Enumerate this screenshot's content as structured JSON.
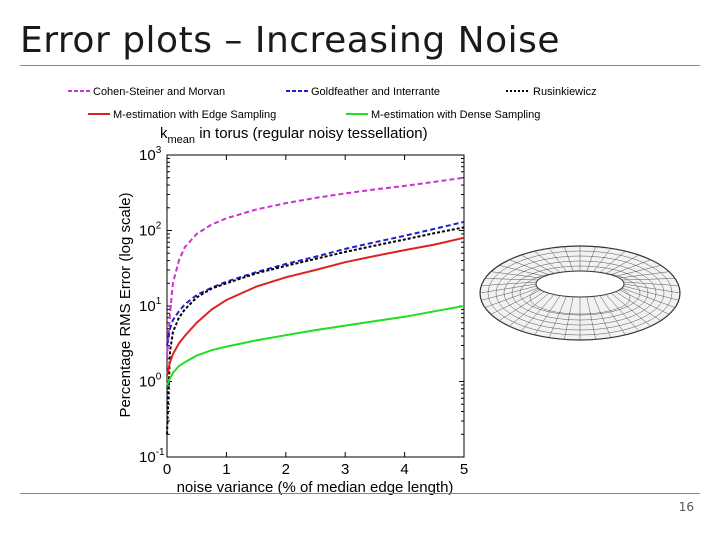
{
  "slide": {
    "title": "Error plots – Increasing Noise",
    "page_number": "16"
  },
  "chart_data": {
    "type": "line",
    "title_main": "k",
    "title_sub": "mean",
    "title_rest": " in torus (regular noisy tessellation)",
    "xlabel": "noise variance (% of median edge length)",
    "ylabel": "Percentage RMS Error (log scale)",
    "yscale": "log",
    "xlim": [
      0,
      5
    ],
    "ylim_exp": [
      -1,
      3
    ],
    "x_ticks": [
      "0",
      "1",
      "2",
      "3",
      "4",
      "5"
    ],
    "y_ticks": [
      {
        "base": "10",
        "exp": "-1"
      },
      {
        "base": "10",
        "exp": "0"
      },
      {
        "base": "10",
        "exp": "1"
      },
      {
        "base": "10",
        "exp": "2"
      },
      {
        "base": "10",
        "exp": "3"
      }
    ],
    "x": [
      0,
      0.05,
      0.1,
      0.2,
      0.3,
      0.5,
      0.75,
      1,
      1.5,
      2,
      2.5,
      3,
      3.5,
      4,
      4.5,
      5
    ],
    "series": [
      {
        "name": "Cohen-Steiner and Morvan",
        "color": "#cc33cc",
        "dash": "dashed",
        "values": [
          2.0,
          8,
          20,
          40,
          60,
          90,
          120,
          145,
          190,
          230,
          270,
          310,
          350,
          390,
          440,
          500
        ]
      },
      {
        "name": "Goldfeather and Interrante",
        "color": "#1f1fd0",
        "dash": "dashed",
        "values": [
          3.0,
          5.0,
          6.5,
          8.5,
          10.5,
          14,
          17.5,
          21,
          28,
          36,
          45,
          57,
          70,
          85,
          105,
          130
        ]
      },
      {
        "name": "Rusinkiewicz",
        "color": "#000000",
        "dash": "dotted",
        "values": [
          0.2,
          2.5,
          4.5,
          7,
          9,
          13,
          17,
          20,
          27,
          34,
          42,
          52,
          63,
          76,
          92,
          110
        ]
      },
      {
        "name": "M-estimation with Edge Sampling",
        "color": "#dd2222",
        "dash": "solid",
        "values": [
          1.2,
          1.8,
          2.3,
          3.2,
          4.0,
          6.0,
          9.0,
          12,
          18,
          24,
          30,
          38,
          46,
          55,
          65,
          80
        ]
      },
      {
        "name": "M-estimation with Dense Sampling",
        "color": "#22dd22",
        "dash": "solid",
        "values": [
          0.9,
          1.1,
          1.3,
          1.6,
          1.8,
          2.2,
          2.6,
          2.9,
          3.5,
          4.1,
          4.8,
          5.5,
          6.3,
          7.2,
          8.5,
          10
        ]
      }
    ],
    "legend_placement": "top"
  }
}
